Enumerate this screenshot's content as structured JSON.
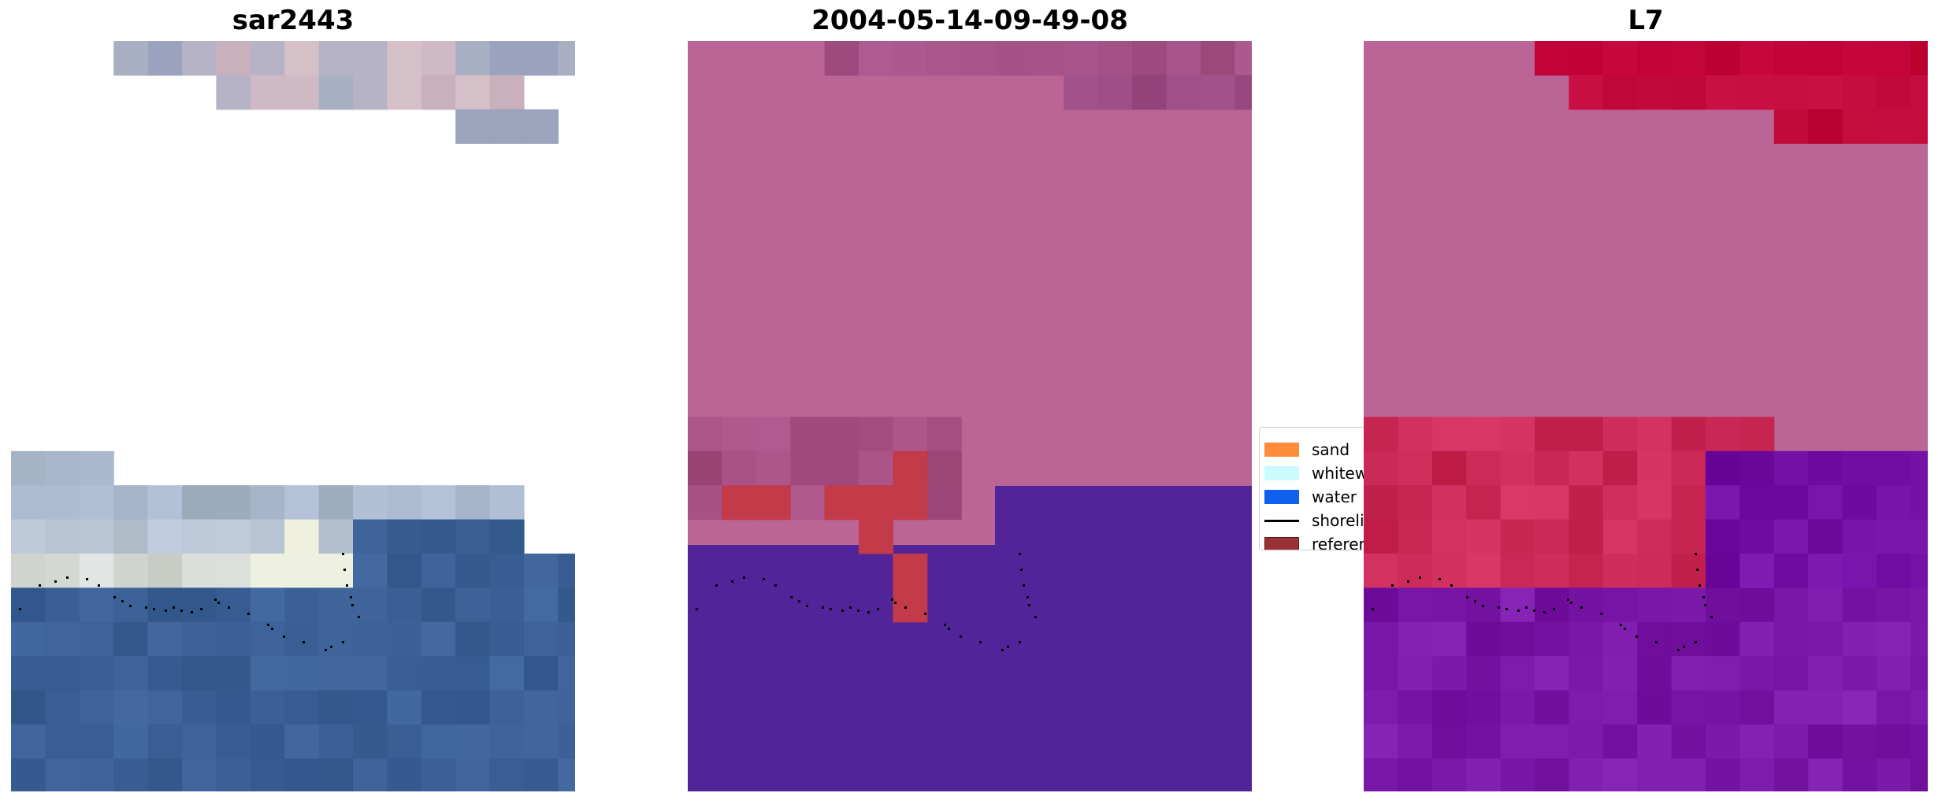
{
  "panels": [
    {
      "title": "sar2443"
    },
    {
      "title": "2004-05-14-09-49-08"
    },
    {
      "title": "L7"
    }
  ],
  "legend": {
    "items": [
      {
        "label": "sand",
        "kind": "patch",
        "color": "#ff8c3a"
      },
      {
        "label": "whitewater",
        "kind": "patch",
        "color": "#c9fbff"
      },
      {
        "label": "water",
        "kind": "patch",
        "color": "#1060f0"
      },
      {
        "label": "shoreline",
        "kind": "line",
        "color": "#000000"
      },
      {
        "label": "reference shoreline",
        "kind": "patch",
        "color": "#9b3035"
      }
    ]
  },
  "colors": {
    "land_overlay": "#bb6496",
    "water_overlay": "#52249a",
    "sand_class": "#c33a48",
    "rgb_water": "#3a6096",
    "rgb_white": "#eceee0",
    "l7_land": "#bf0035",
    "l7_water": "#6e0aa6"
  }
}
